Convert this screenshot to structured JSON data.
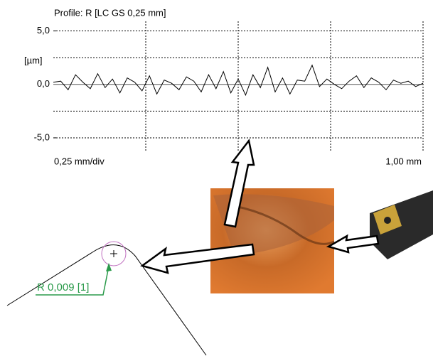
{
  "chart_data": {
    "type": "line",
    "title": "Profile: R [LC GS 0,25 mm]",
    "y_unit": "[µm]",
    "x_div_label": "0,25 mm/div",
    "x_end_label": "1,00 mm",
    "color": "#000000",
    "x": [
      0,
      0.02,
      0.04,
      0.06,
      0.08,
      0.1,
      0.12,
      0.14,
      0.16,
      0.18,
      0.2,
      0.22,
      0.24,
      0.26,
      0.28,
      0.3,
      0.32,
      0.34,
      0.36,
      0.38,
      0.4,
      0.42,
      0.44,
      0.46,
      0.48,
      0.5,
      0.52,
      0.54,
      0.56,
      0.58,
      0.6,
      0.62,
      0.64,
      0.66,
      0.68,
      0.7,
      0.72,
      0.74,
      0.76,
      0.78,
      0.8,
      0.82,
      0.84,
      0.86,
      0.88,
      0.9,
      0.92,
      0.94,
      0.96,
      0.98,
      1.0
    ],
    "values": [
      0.2,
      0.3,
      -0.5,
      0.9,
      0.2,
      -0.4,
      1.0,
      -0.3,
      0.5,
      -0.8,
      0.6,
      0.2,
      -0.6,
      0.8,
      -0.9,
      0.4,
      0.1,
      -0.5,
      0.7,
      0.3,
      -0.7,
      0.9,
      -0.4,
      1.2,
      -0.8,
      0.5,
      -1.0,
      0.9,
      -0.3,
      1.6,
      -0.7,
      0.6,
      -0.9,
      0.4,
      0.3,
      1.8,
      -0.2,
      0.5,
      0.0,
      -0.4,
      0.3,
      0.8,
      -0.3,
      0.6,
      0.2,
      -0.5,
      0.4,
      0.1,
      0.3,
      -0.2,
      0.1
    ],
    "xlim": [
      0,
      1
    ],
    "xticks": [
      0.25,
      0.5,
      0.75,
      1
    ],
    "ylim": [
      -6.2,
      5.9
    ],
    "yticks": [
      {
        "value": 5,
        "label": "5,0"
      },
      {
        "value": 0,
        "label": "0,0"
      },
      {
        "value": -5,
        "label": "-5,0"
      }
    ],
    "ygrid": [
      5,
      2.5,
      -2.5,
      -5
    ],
    "grid": true
  },
  "radius_label": "R 0,009 [1]"
}
